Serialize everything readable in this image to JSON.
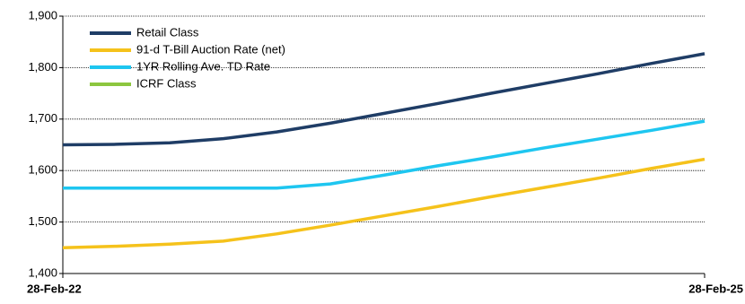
{
  "chart_data": {
    "type": "line",
    "categories": [
      "28-Feb-22",
      null,
      null,
      null,
      null,
      null,
      null,
      null,
      null,
      null,
      null,
      null,
      "28-Feb-25"
    ],
    "series": [
      {
        "name": "Retail Class",
        "color": "#1f3d66",
        "values": [
          1650,
          1651,
          1654,
          1662,
          1675,
          1692,
          1711,
          1730,
          1750,
          1769,
          1788,
          1808,
          1827
        ]
      },
      {
        "name": "91-d T-Bill Auction Rate (net)",
        "color": "#f5c21b",
        "values": [
          1450,
          1453,
          1457,
          1463,
          1477,
          1494,
          1512,
          1530,
          1549,
          1567,
          1585,
          1604,
          1622
        ]
      },
      {
        "name": "1YR Rolling Ave. TD Rate",
        "color": "#1ec6f0",
        "values": [
          1566,
          1566,
          1566,
          1566,
          1566,
          1574,
          1591,
          1609,
          1626,
          1644,
          1661,
          1678,
          1696
        ]
      },
      {
        "name": "ICRF Class",
        "color": "#8cc63f",
        "values": [
          null,
          null,
          null,
          null,
          null,
          null,
          null,
          null,
          null,
          null,
          null,
          null,
          null
        ]
      }
    ],
    "ylim": [
      1400,
      1900
    ],
    "yticks": [
      {
        "value": 1400,
        "label": "1,400"
      },
      {
        "value": 1500,
        "label": "1,500"
      },
      {
        "value": 1600,
        "label": "1,600"
      },
      {
        "value": 1700,
        "label": "1,700"
      },
      {
        "value": 1800,
        "label": "1,800"
      },
      {
        "value": 1900,
        "label": "1,900"
      }
    ],
    "grid": true
  }
}
